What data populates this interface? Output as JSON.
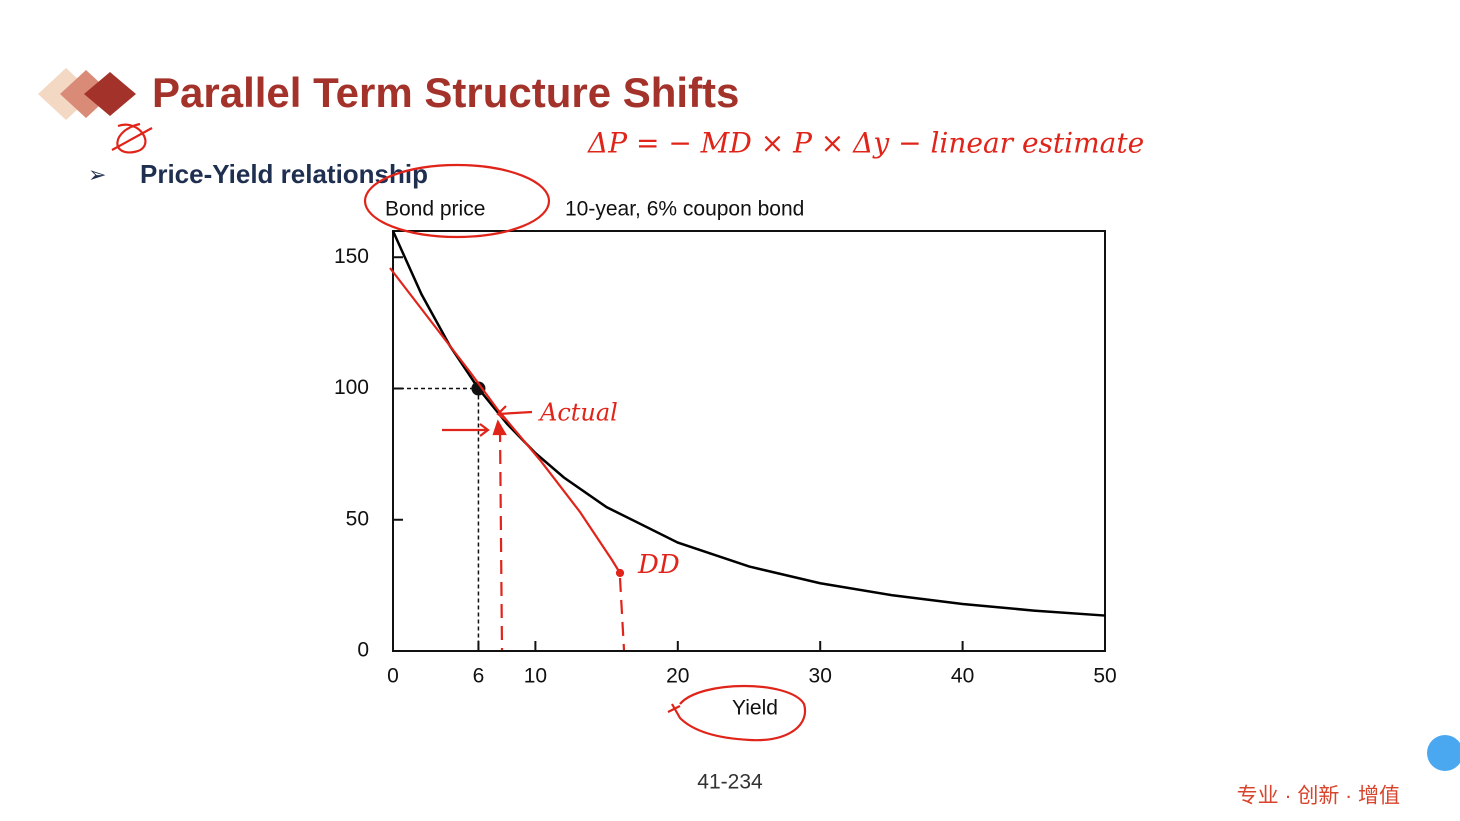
{
  "slide": {
    "title": "Parallel Term Structure Shifts",
    "bullet": "Price-Yield relationship",
    "page_number": "41-234",
    "footer": "专业 · 创新 · 增值",
    "formula_note": "ΔP = − MD × P × Δy − linear estimate",
    "actual_note": "Actual",
    "dd_note": "DD"
  },
  "chart_data": {
    "type": "line",
    "title": "10-year, 6% coupon bond",
    "ylabel": "Bond price",
    "xlabel": "Yield",
    "x": [
      0,
      2,
      4,
      6,
      8,
      10,
      12,
      15,
      20,
      25,
      30,
      35,
      40,
      45,
      50
    ],
    "series": [
      {
        "color": "#000000",
        "values": [
          160,
          135.9,
          116.2,
          100,
          86.6,
          75.4,
          66.1,
          54.8,
          41.3,
          32.2,
          25.8,
          21.3,
          17.9,
          15.4,
          13.5
        ]
      }
    ],
    "point": {
      "x": 6,
      "y": 100
    },
    "xlim": [
      0,
      50
    ],
    "xticks": [
      0,
      6,
      10,
      20,
      30,
      40,
      50
    ],
    "ylim": [
      0,
      160
    ],
    "yticks": [
      0,
      50,
      100,
      150
    ]
  }
}
